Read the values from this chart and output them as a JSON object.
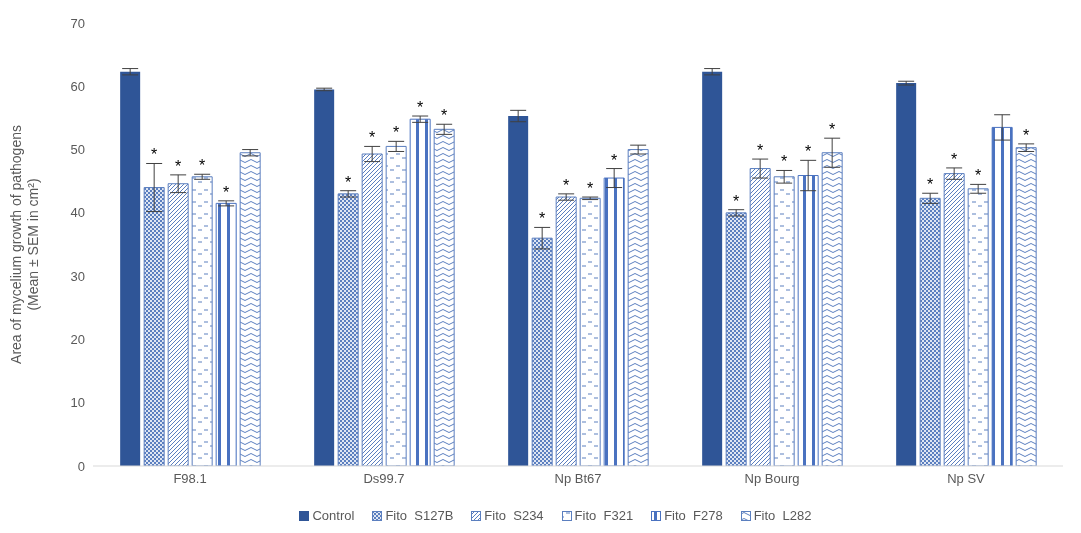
{
  "chart_data": {
    "type": "bar",
    "ylabel": "Area of mycelium growth of pathogens (Mean ± SEM in cm²)",
    "categories": [
      "F98.1",
      "Ds99.7",
      "Np Bt67",
      "Np Bourg",
      "Np SV"
    ],
    "ylim": [
      0,
      70
    ],
    "yticks": [
      0,
      10,
      20,
      30,
      40,
      50,
      60,
      70
    ],
    "grid": false,
    "legend": "bottom",
    "series": [
      {
        "name": "Control",
        "color": "#2f5597",
        "values": [
          62.3,
          59.5,
          55.3,
          62.3,
          60.5
        ],
        "errors": [
          0.5,
          0.2,
          0.9,
          0.5,
          0.3
        ]
      },
      {
        "name": "Fito  S127B",
        "color": "#5b7fbf",
        "values": [
          44,
          43,
          36,
          40,
          42.3
        ],
        "errors": [
          3.8,
          0.5,
          1.7,
          0.5,
          0.8
        ],
        "value_labels": [
          "*",
          "*",
          "*",
          "*",
          "*"
        ]
      },
      {
        "name": "Fito  S234",
        "color": "#5b7fbf",
        "values": [
          44.6,
          49.3,
          42.5,
          47,
          46.2
        ],
        "errors": [
          1.4,
          1.2,
          0.5,
          1.5,
          0.9
        ],
        "value_labels": [
          "*",
          "*",
          "*",
          "*",
          "*"
        ]
      },
      {
        "name": "Fito  F321",
        "color": "#5b7fbf",
        "values": [
          45.7,
          50.5,
          42.3,
          45.7,
          43.8
        ],
        "errors": [
          0.4,
          0.8,
          0.2,
          1,
          0.7
        ],
        "value_labels": [
          "*",
          "*",
          "*",
          "*",
          "*"
        ]
      },
      {
        "name": "Fito  F278",
        "color": "#4a72c0",
        "values": [
          41.5,
          54.8,
          45.5,
          45.9,
          53.5
        ],
        "errors": [
          0.4,
          0.5,
          1.5,
          2.4,
          2
        ],
        "value_labels": [
          "*",
          "*",
          "*",
          "*",
          null
        ]
      },
      {
        "name": "Fito  L282",
        "color": "#5b7fbf",
        "values": [
          49.5,
          53.2,
          50,
          49.5,
          50.3
        ],
        "errors": [
          0.5,
          0.8,
          0.7,
          2.3,
          0.6
        ],
        "value_labels": [
          null,
          "*",
          null,
          "*",
          "*"
        ]
      }
    ]
  }
}
